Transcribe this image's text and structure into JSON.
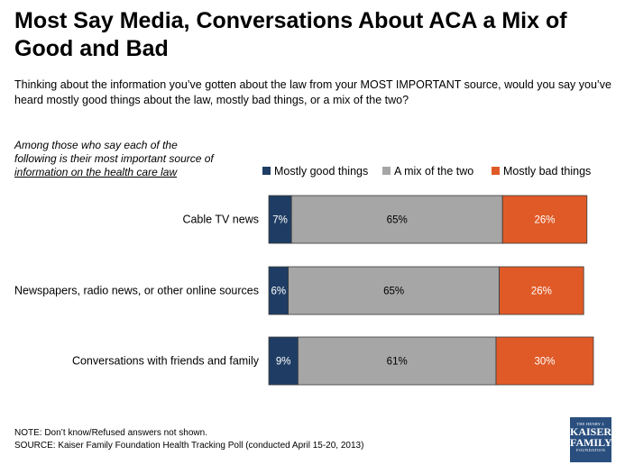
{
  "header": {
    "title": "Most Say Media, Conversations About ACA a Mix of Good and Bad",
    "subtitle": "Thinking about the information you’ve gotten about the law from your MOST IMPORTANT source, would you say you’ve heard mostly good things about the law, mostly bad things, or a mix of the two?",
    "note_line1": "Among those who say each of the",
    "note_line2": "following is their most important source of",
    "note_line3": "information on the health care law"
  },
  "chart_data": {
    "type": "bar",
    "orientation": "horizontal",
    "stacked": true,
    "categories": [
      "Cable TV news",
      "Newspapers, radio news, or other online sources",
      "Conversations with friends and family"
    ],
    "series": [
      {
        "name": "Mostly good things",
        "values": [
          7,
          6,
          9
        ],
        "color": "#1f3d64"
      },
      {
        "name": "A mix of the two",
        "values": [
          65,
          65,
          61
        ],
        "color": "#a6a6a6"
      },
      {
        "name": "Mostly bad things",
        "values": [
          26,
          26,
          30
        ],
        "color": "#e05a27"
      }
    ],
    "value_suffix": "%",
    "legend_position": "top"
  },
  "footer": {
    "note": "NOTE: Don’t know/Refused answers not shown.",
    "source": "SOURCE: Kaiser Family Foundation Health Tracking Poll (conducted April 15-20, 2013)"
  },
  "logo": {
    "line1": "THE HENRY J.",
    "line2a": "KAISER",
    "line2b": "FAMILY",
    "line3": "FOUNDATION"
  }
}
